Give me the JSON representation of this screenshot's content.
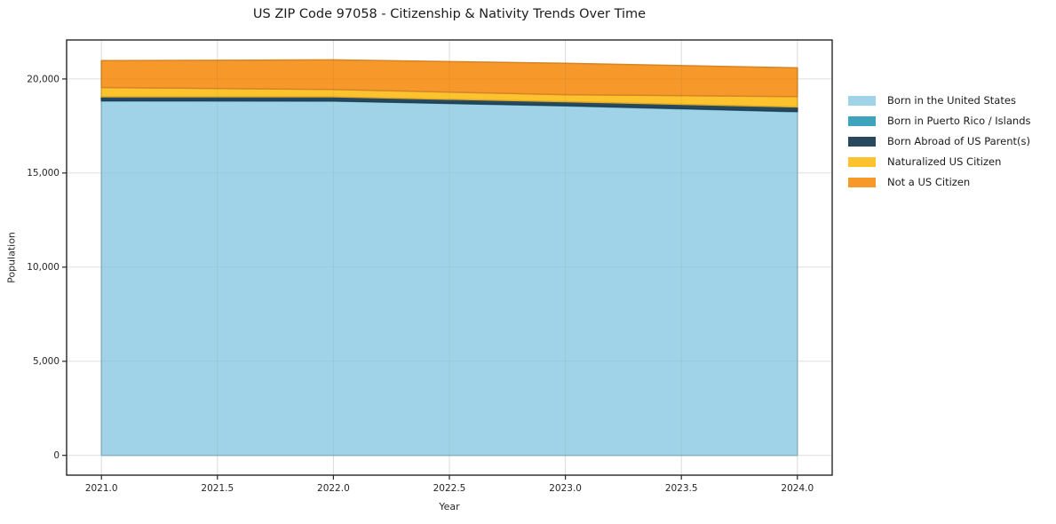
{
  "chart_data": {
    "type": "area",
    "stacked": true,
    "title": "US ZIP Code 97058 - Citizenship & Nativity Trends Over Time",
    "xlabel": "Year",
    "ylabel": "Population",
    "x": [
      2021,
      2022,
      2023,
      2024
    ],
    "series": [
      {
        "name": "Born in the United States",
        "color": "#a1d3e8",
        "values": [
          18830,
          18820,
          18570,
          18255
        ]
      },
      {
        "name": "Born in Puerto Rico / Islands",
        "color": "#3ea3bd",
        "values": [
          20,
          20,
          20,
          20
        ]
      },
      {
        "name": "Born Abroad of US Parent(s)",
        "color": "#28485e",
        "values": [
          200,
          210,
          200,
          235
        ]
      },
      {
        "name": "Naturalized US Citizen",
        "color": "#fdc32f",
        "values": [
          495,
          385,
          375,
          550
        ]
      },
      {
        "name": "Not a US Citizen",
        "color": "#f7982b",
        "values": [
          1425,
          1580,
          1665,
          1530
        ]
      }
    ],
    "xlim": [
      2020.85,
      2024.15
    ],
    "ylim": [
      -1050,
      22070
    ],
    "xticks": {
      "values": [
        2021.0,
        2021.5,
        2022.0,
        2022.5,
        2023.0,
        2023.5,
        2024.0
      ],
      "labels": [
        "2021.0",
        "2021.5",
        "2022.0",
        "2022.5",
        "2023.0",
        "2023.5",
        "2024.0"
      ]
    },
    "yticks": {
      "values": [
        0,
        5000,
        10000,
        15000,
        20000
      ],
      "labels": [
        "0",
        "5,000",
        "10,000",
        "15,000",
        "20,000"
      ]
    },
    "grid": true,
    "legend_position": "right",
    "colors": {
      "grid": "#e8e8e8",
      "spine": "#262626",
      "tick_text": "#262626",
      "background": "#ffffff"
    }
  }
}
